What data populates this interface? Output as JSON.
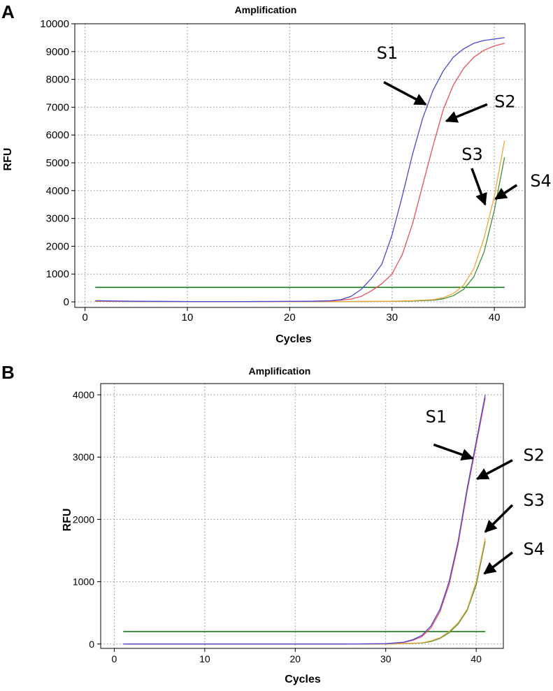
{
  "chart_data": [
    {
      "panel": "A",
      "type": "line",
      "title": "Amplification",
      "xlabel": "Cycles",
      "ylabel": "RFU",
      "xlim": [
        -1,
        43
      ],
      "ylim": [
        -200,
        10000
      ],
      "xticks": [
        0,
        10,
        20,
        30,
        40
      ],
      "yticks": [
        0,
        1000,
        2000,
        3000,
        4000,
        5000,
        6000,
        7000,
        8000,
        9000,
        10000
      ],
      "grid": true,
      "threshold": {
        "x": [
          1,
          41
        ],
        "y": 520,
        "color": "#1a7a1a"
      },
      "series": [
        {
          "name": "S1",
          "color": "#4848d6",
          "x": [
            1,
            5,
            10,
            15,
            20,
            22,
            24,
            25,
            26,
            27,
            28,
            29,
            30,
            31,
            32,
            33,
            34,
            35,
            36,
            37,
            38,
            39,
            40,
            41
          ],
          "y": [
            40,
            20,
            10,
            10,
            15,
            20,
            40,
            80,
            200,
            450,
            850,
            1350,
            2400,
            3800,
            5300,
            6600,
            7600,
            8300,
            8800,
            9100,
            9300,
            9400,
            9450,
            9500
          ]
        },
        {
          "name": "S2",
          "color": "#e8505a",
          "x": [
            1,
            5,
            10,
            15,
            20,
            22,
            24,
            26,
            27,
            28,
            29,
            30,
            31,
            32,
            33,
            34,
            35,
            36,
            37,
            38,
            39,
            40,
            41
          ],
          "y": [
            30,
            15,
            10,
            10,
            15,
            20,
            30,
            100,
            200,
            400,
            650,
            1000,
            1700,
            2800,
            4200,
            5600,
            6900,
            7800,
            8400,
            8800,
            9050,
            9200,
            9300
          ]
        },
        {
          "name": "S3",
          "color": "#f0a838",
          "x": [
            1,
            5,
            10,
            15,
            20,
            25,
            30,
            32,
            34,
            35,
            36,
            37,
            38,
            39,
            40,
            41
          ],
          "y": [
            20,
            10,
            5,
            5,
            5,
            10,
            20,
            40,
            80,
            150,
            300,
            600,
            1200,
            2300,
            3800,
            5800
          ]
        },
        {
          "name": "S4",
          "color": "#3f8f3f",
          "x": [
            1,
            5,
            10,
            15,
            20,
            25,
            30,
            32,
            34,
            35,
            36,
            37,
            38,
            39,
            40,
            41
          ],
          "y": [
            20,
            10,
            5,
            5,
            5,
            10,
            15,
            30,
            60,
            110,
            220,
            450,
            900,
            1800,
            3300,
            5200
          ]
        }
      ],
      "annotations": [
        {
          "label": "S1",
          "text_at": [
            28.5,
            8750
          ],
          "arrow_from": [
            29.2,
            7900
          ],
          "arrow_to": [
            33.3,
            7100
          ]
        },
        {
          "label": "S2",
          "text_at": [
            40.0,
            7000
          ],
          "arrow_from": [
            39.3,
            7100
          ],
          "arrow_to": [
            35.3,
            6500
          ]
        },
        {
          "label": "S3",
          "text_at": [
            36.8,
            5100
          ],
          "arrow_from": [
            37.8,
            4800
          ],
          "arrow_to": [
            39.1,
            3500
          ]
        },
        {
          "label": "S4",
          "text_at": [
            43.5,
            4150
          ],
          "arrow_from": [
            42.2,
            4200
          ],
          "arrow_to": [
            40.1,
            3700
          ]
        }
      ]
    },
    {
      "panel": "B",
      "type": "line",
      "title": "Amplification",
      "xlabel": "Cycles",
      "ylabel": "RFU",
      "xlim": [
        -1.5,
        43
      ],
      "ylim": [
        -70,
        4180
      ],
      "xticks": [
        0,
        10,
        20,
        30,
        40
      ],
      "yticks": [
        0,
        1000,
        2000,
        3000,
        4000
      ],
      "grid": true,
      "threshold": {
        "x": [
          1,
          41
        ],
        "y": 200,
        "color": "#1a7a1a"
      },
      "series": [
        {
          "name": "S1",
          "color": "#4848d6",
          "x": [
            1,
            10,
            20,
            25,
            30,
            32,
            33,
            34,
            35,
            36,
            37,
            38,
            39,
            40,
            41
          ],
          "y": [
            0,
            0,
            0,
            0,
            5,
            30,
            70,
            140,
            290,
            560,
            1000,
            1650,
            2500,
            3250,
            4000
          ]
        },
        {
          "name": "S2",
          "color": "#e8505a",
          "x": [
            1,
            10,
            20,
            25,
            30,
            32,
            33,
            34,
            35,
            36,
            37,
            38,
            39,
            40,
            41
          ],
          "y": [
            0,
            0,
            0,
            0,
            5,
            25,
            60,
            120,
            260,
            520,
            950,
            1600,
            2450,
            3200,
            3950
          ]
        },
        {
          "name": "S3",
          "color": "#f0a838",
          "x": [
            1,
            10,
            20,
            30,
            34,
            35,
            36,
            37,
            38,
            39,
            40,
            41
          ],
          "y": [
            0,
            0,
            0,
            0,
            20,
            50,
            100,
            200,
            340,
            560,
            1000,
            1700
          ]
        },
        {
          "name": "S4",
          "color": "#3f8f3f",
          "x": [
            1,
            10,
            20,
            30,
            34,
            35,
            36,
            37,
            38,
            39,
            40,
            41
          ],
          "y": [
            0,
            0,
            0,
            0,
            15,
            40,
            90,
            180,
            320,
            540,
            950,
            1650
          ]
        }
      ],
      "annotations": [
        {
          "label": "S1",
          "text_at": [
            34.4,
            3560
          ],
          "arrow_from": [
            35.3,
            3200
          ],
          "arrow_to": [
            39.6,
            2980
          ]
        },
        {
          "label": "S2",
          "text_at": [
            45.2,
            2940
          ],
          "arrow_from": [
            44.0,
            2950
          ],
          "arrow_to": [
            40.1,
            2650
          ]
        },
        {
          "label": "S3",
          "text_at": [
            45.2,
            2220
          ],
          "arrow_from": [
            44.0,
            2230
          ],
          "arrow_to": [
            41.0,
            1800
          ]
        },
        {
          "label": "S4",
          "text_at": [
            45.2,
            1430
          ],
          "arrow_from": [
            44.0,
            1470
          ],
          "arrow_to": [
            40.9,
            1130
          ]
        }
      ]
    }
  ],
  "panel_labels": [
    "A",
    "B"
  ]
}
